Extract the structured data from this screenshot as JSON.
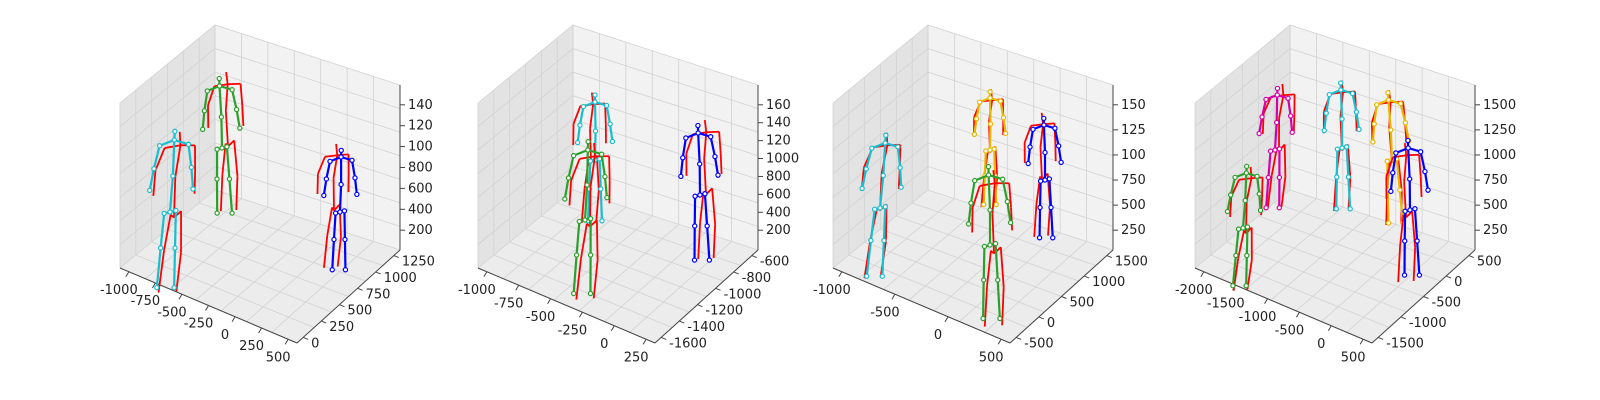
{
  "figure": {
    "background": "#ffffff",
    "pane_colors": {
      "floor": "#ececec",
      "back": "#f2f2f2",
      "side": "#e3e3e3",
      "grid": "#d2d2d2",
      "edge": "#bbbbbb"
    }
  },
  "chart_data": [
    {
      "type": "3d-skeleton",
      "title": "",
      "x_ticks": [
        "-1000",
        "-750",
        "-500",
        "-250",
        "0",
        "250",
        "500"
      ],
      "y_ticks": [
        "0",
        "250",
        "500",
        "750",
        "1000",
        "1250"
      ],
      "z_ticks": [
        "200",
        "400",
        "600",
        "800",
        "100",
        "120",
        "140"
      ],
      "skeletons": [
        {
          "color": "#2ca02c",
          "joint_color": "#2ca02c",
          "ground_truth_color": "#ff0000"
        },
        {
          "color": "#17becf",
          "joint_color": "#17becf",
          "ground_truth_color": "#ff0000"
        },
        {
          "color": "#0000ff",
          "joint_color": "#0000ff",
          "ground_truth_color": "#ff0000"
        }
      ]
    },
    {
      "type": "3d-skeleton",
      "title": "",
      "x_ticks": [
        "-1000",
        "-750",
        "-500",
        "-250",
        "0",
        "250"
      ],
      "y_ticks": [
        "-1600",
        "-1400",
        "-1200",
        "-1000",
        "-800",
        "-600"
      ],
      "z_ticks": [
        "200",
        "400",
        "600",
        "800",
        "1000",
        "120",
        "140",
        "160"
      ],
      "skeletons": [
        {
          "color": "#17becf",
          "joint_color": "#17becf",
          "ground_truth_color": "#ff0000"
        },
        {
          "color": "#2ca02c",
          "joint_color": "#2ca02c",
          "ground_truth_color": "#ff0000"
        },
        {
          "color": "#0000ff",
          "joint_color": "#0000ff",
          "ground_truth_color": "#ff0000"
        }
      ]
    },
    {
      "type": "3d-skeleton",
      "title": "",
      "x_ticks": [
        "-1000",
        "-500",
        "0",
        "500"
      ],
      "y_ticks": [
        "-500",
        "0",
        "500",
        "1000",
        "1500"
      ],
      "z_ticks": [
        "250",
        "500",
        "750",
        "100",
        "125",
        "150"
      ],
      "skeletons": [
        {
          "color": "#17becf",
          "joint_color": "#17becf",
          "ground_truth_color": "#ff0000"
        },
        {
          "color": "#e6b800",
          "joint_color": "#e6b800",
          "ground_truth_color": "#ff0000"
        },
        {
          "color": "#2ca02c",
          "joint_color": "#2ca02c",
          "ground_truth_color": "#ff0000"
        },
        {
          "color": "#0000ff",
          "joint_color": "#0000ff",
          "ground_truth_color": "#ff0000"
        }
      ]
    },
    {
      "type": "3d-skeleton",
      "title": "",
      "x_ticks": [
        "-2000",
        "-1500",
        "-1000",
        "-500",
        "0",
        "500"
      ],
      "y_ticks": [
        "-1500",
        "-1000",
        "-500",
        "0",
        "500"
      ],
      "z_ticks": [
        "250",
        "500",
        "750",
        "1000",
        "1250",
        "1500"
      ],
      "skeletons": [
        {
          "color": "#2ca02c",
          "joint_color": "#2ca02c",
          "ground_truth_color": "#ff0000"
        },
        {
          "color": "#d400aa",
          "joint_color": "#d400aa",
          "ground_truth_color": "#ff0000"
        },
        {
          "color": "#17becf",
          "joint_color": "#17becf",
          "ground_truth_color": "#ff0000"
        },
        {
          "color": "#e6b800",
          "joint_color": "#e6b800",
          "ground_truth_color": "#ff0000"
        },
        {
          "color": "#0000ff",
          "joint_color": "#0000ff",
          "ground_truth_color": "#ff0000"
        }
      ]
    }
  ]
}
